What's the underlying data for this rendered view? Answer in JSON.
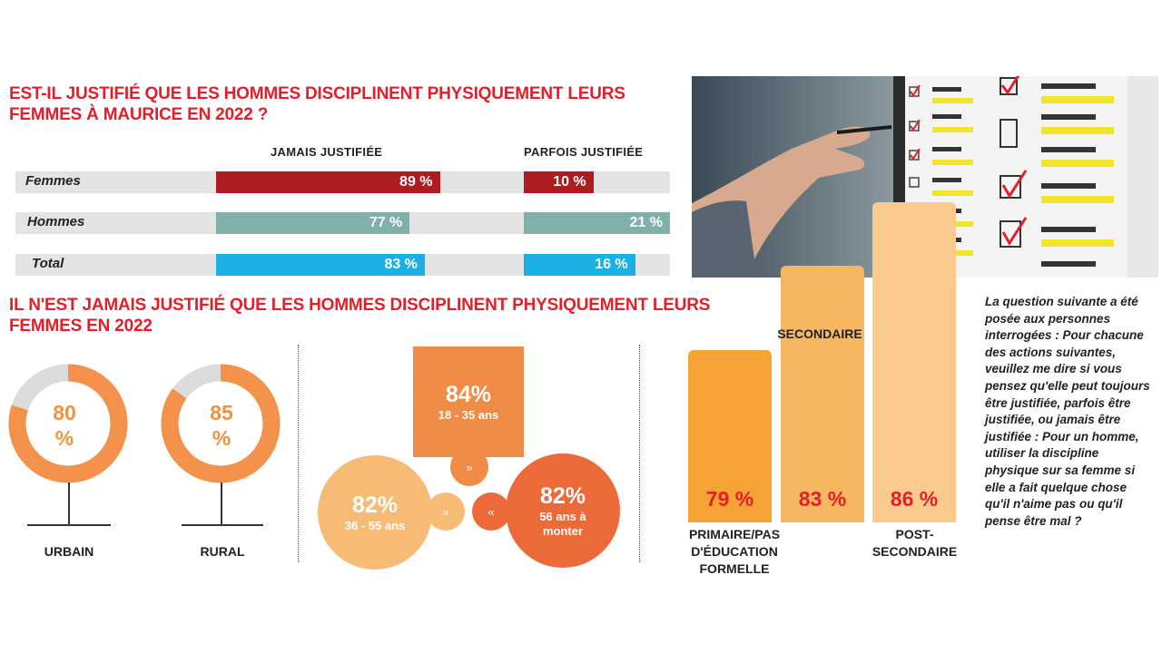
{
  "titles": {
    "top": "EST-IL JUSTIFIÉ QUE LES HOMMES DISCIPLINENT PHYSIQUEMENT LEURS FEMMES À MAURICE EN 2022 ?",
    "bottom": "IL N'EST JAMAIS JUSTIFIÉ QUE LES HOMMES DISCIPLINENT PHYSIQUEMENT LEURS FEMMES EN 2022"
  },
  "chart_data": [
    {
      "type": "bar",
      "title": "EST-IL JUSTIFIÉ QUE LES HOMMES DISCIPLINENT PHYSIQUEMENT LEURS FEMMES À MAURICE EN 2022 ?",
      "categories": [
        "Femmes",
        "Hommes",
        "Total"
      ],
      "series": [
        {
          "name": "JAMAIS JUSTIFIÉE",
          "values": [
            89,
            77,
            83
          ],
          "labels": [
            "89 %",
            "77 %",
            "83 %"
          ],
          "max": 100
        },
        {
          "name": "PARFOIS JUSTIFIÉE",
          "values": [
            10,
            21,
            16
          ],
          "labels": [
            "10 %",
            "21 %",
            "16 %"
          ],
          "max": 21
        }
      ],
      "colors": [
        "#ae1c22",
        "#7fb0a9",
        "#1ab0e5"
      ]
    },
    {
      "type": "pie",
      "subtype": "donut",
      "items": [
        {
          "label": "URBAIN",
          "value": 80,
          "pct": "80",
          "unit": "%"
        },
        {
          "label": "RURAL",
          "value": 85,
          "pct": "85",
          "unit": "%"
        }
      ]
    },
    {
      "type": "bubble",
      "items": [
        {
          "pct": "84%",
          "label": "18 - 35 ans",
          "value": 84
        },
        {
          "pct": "82%",
          "label": "36 - 55 ans",
          "value": 82
        },
        {
          "pct": "82%",
          "label": "56 ans à monter",
          "value": 82
        }
      ],
      "arrows": [
        "»",
        "»",
        "«"
      ]
    },
    {
      "type": "bar",
      "categories": [
        "PRIMAIRE/PAS D'ÉDUCATION FORMELLE",
        "SECONDAIRE",
        "POST-SECONDAIRE"
      ],
      "values": [
        79,
        83,
        86
      ],
      "labels": [
        "79 %",
        "83 %",
        "86 %"
      ],
      "colors": [
        "#f5a335",
        "#f7b660",
        "#fbcb8e"
      ]
    }
  ],
  "side_text": "La question suivante a été posée aux personnes interrogées : Pour chacune des actions suivantes, veuillez me dire si vous pensez qu'elle peut toujours être justifiée, parfois être justifiée, ou jamais être justifiée : Pour un homme, utiliser la discipline physique sur sa femme si elle a fait quelque chose qu'il n'aime pas ou qu'il pense être mal ?"
}
